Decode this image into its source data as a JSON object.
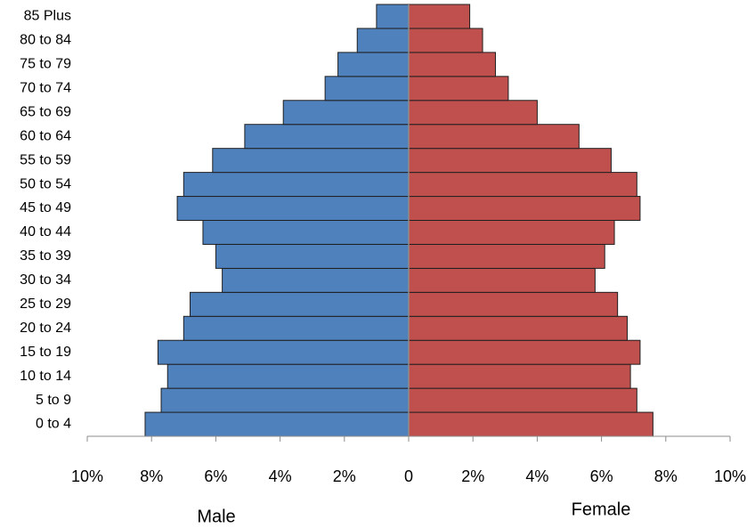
{
  "chart_data": {
    "type": "bar",
    "orientation": "horizontal",
    "categories": [
      "0 to 4",
      "5 to 9",
      "10 to 14",
      "15 to 19",
      "20 to 24",
      "25 to 29",
      "30 to 34",
      "35 to 39",
      "40 to 44",
      "45 to 49",
      "50 to 54",
      "55 to 59",
      "60 to 64",
      "65 to 69",
      "70 to 74",
      "75 to 79",
      "80 to 84",
      "85 Plus"
    ],
    "series": [
      {
        "name": "Male",
        "color": "#4f81bd",
        "values": [
          -8.2,
          -7.7,
          -7.5,
          -7.8,
          -7.0,
          -6.8,
          -5.8,
          -6.0,
          -6.4,
          -7.2,
          -7.0,
          -6.1,
          -5.1,
          -3.9,
          -2.6,
          -2.2,
          -1.6,
          -1.0
        ]
      },
      {
        "name": "Female",
        "color": "#c0504d",
        "values": [
          7.6,
          7.1,
          6.9,
          7.2,
          6.8,
          6.5,
          5.8,
          6.1,
          6.4,
          7.2,
          7.1,
          6.3,
          5.3,
          4.0,
          3.1,
          2.7,
          2.3,
          1.9
        ]
      }
    ],
    "xlim": [
      -10,
      10
    ],
    "xticks": [
      {
        "value": -10,
        "label": "10%"
      },
      {
        "value": -8,
        "label": "8%"
      },
      {
        "value": -6,
        "label": "6%"
      },
      {
        "value": -4,
        "label": "4%"
      },
      {
        "value": -2,
        "label": "2%"
      },
      0,
      {
        "value": 2,
        "label": "2%"
      },
      {
        "value": 4,
        "label": "4%"
      },
      {
        "value": 6,
        "label": "6%"
      },
      {
        "value": 8,
        "label": "8%"
      },
      {
        "value": 10,
        "label": "10%"
      }
    ]
  }
}
